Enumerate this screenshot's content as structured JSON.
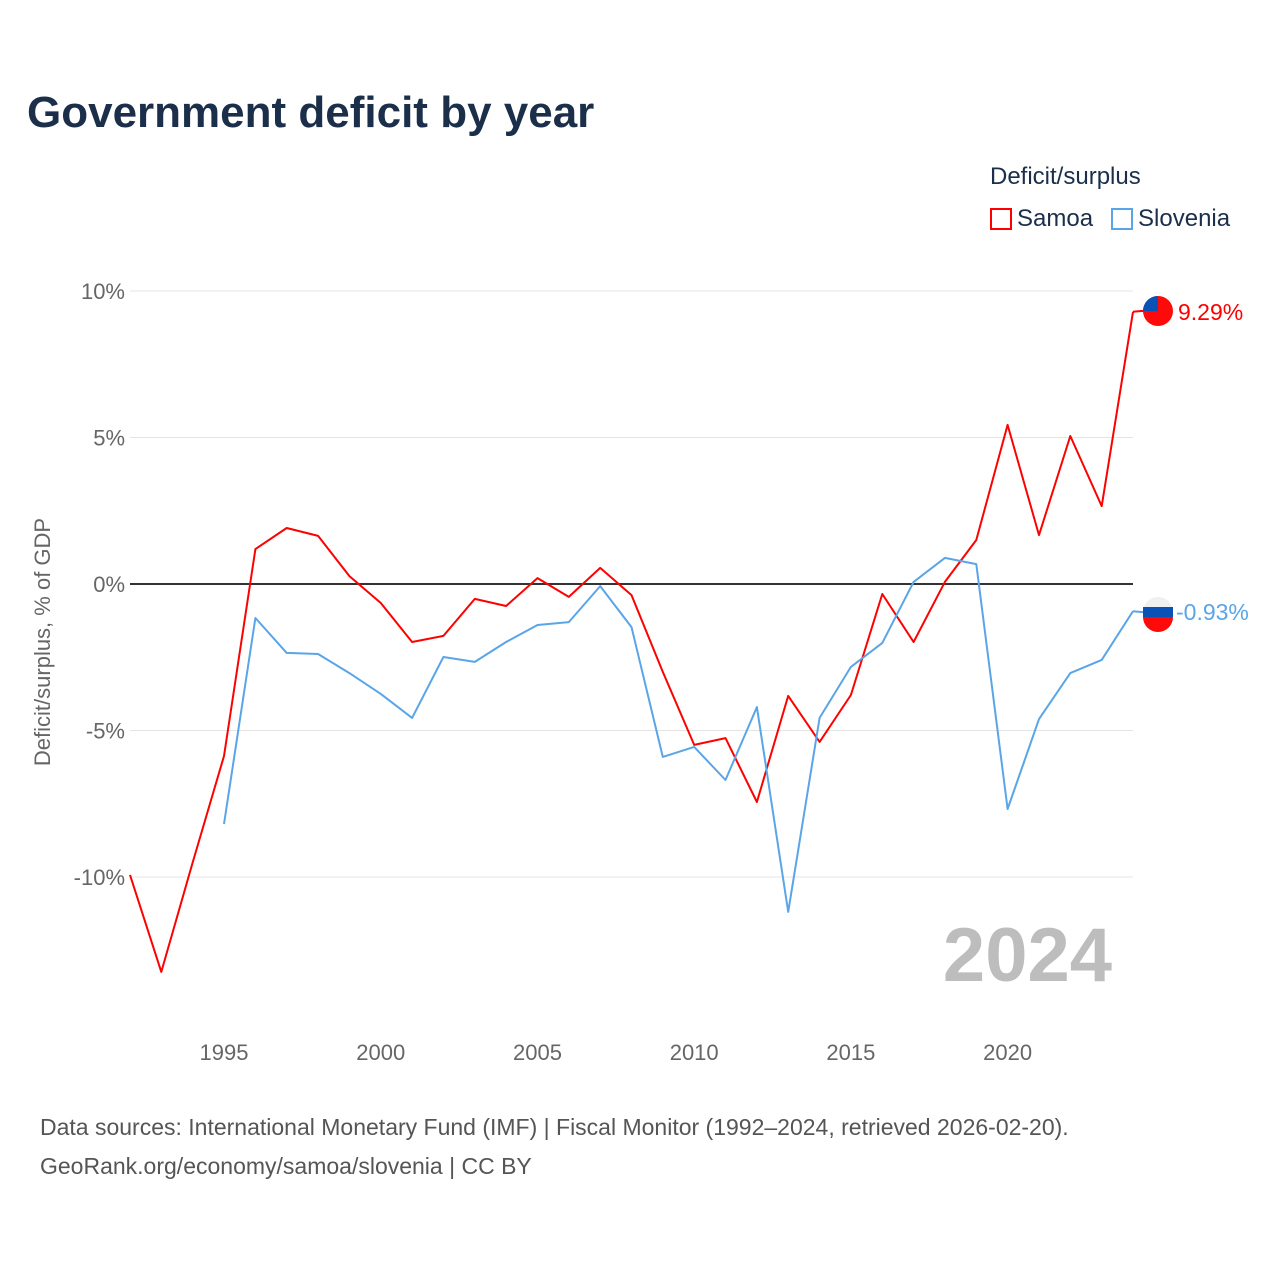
{
  "title": "Government deficit by year",
  "legend": {
    "title": "Deficit/surplus",
    "items": [
      {
        "name": "Samoa",
        "color": "#ff0000"
      },
      {
        "name": "Slovenia",
        "color": "#5aa5e8"
      }
    ]
  },
  "watermark_year": "2024",
  "footer": {
    "line1": "Data sources: International Monetary Fund (IMF) | Fiscal Monitor (1992–2024, retrieved 2026-02-20).",
    "line2": "GeoRank.org/economy/samoa/slovenia | CC BY"
  },
  "chart_data": {
    "type": "line",
    "title": "Government deficit by year",
    "xlabel": "",
    "ylabel": "Deficit/surplus, % of GDP",
    "xlim": [
      1992,
      2024
    ],
    "ylim": [
      -14.5,
      10
    ],
    "x_ticks": [
      1995,
      2000,
      2005,
      2010,
      2015,
      2020
    ],
    "y_ticks": [
      {
        "value": 10,
        "label": "10%"
      },
      {
        "value": 5,
        "label": "5%"
      },
      {
        "value": 0,
        "label": "0%"
      },
      {
        "value": -5,
        "label": "-5%"
      },
      {
        "value": -10,
        "label": "-10%"
      }
    ],
    "grid": true,
    "legend_position": "top-right",
    "series": [
      {
        "name": "Samoa",
        "color": "#ff0000",
        "end_label": "9.29%",
        "x": [
          1992,
          1993,
          1994,
          1995,
          1996,
          1997,
          1998,
          1999,
          2000,
          2001,
          2002,
          2003,
          2004,
          2005,
          2006,
          2007,
          2008,
          2009,
          2010,
          2011,
          2012,
          2013,
          2014,
          2015,
          2016,
          2017,
          2018,
          2019,
          2020,
          2021,
          2022,
          2023,
          2024
        ],
        "values": [
          -9.93,
          -13.24,
          -9.5,
          -5.87,
          1.19,
          1.91,
          1.64,
          0.27,
          -0.65,
          -1.98,
          -1.77,
          -0.51,
          -0.75,
          0.2,
          -0.44,
          0.55,
          -0.38,
          -3.0,
          -5.49,
          -5.26,
          -7.44,
          -3.82,
          -5.39,
          -3.79,
          -0.34,
          -1.98,
          0.07,
          1.5,
          5.43,
          1.67,
          5.05,
          2.66,
          9.29
        ]
      },
      {
        "name": "Slovenia",
        "color": "#5aa5e8",
        "end_label": "-0.93%",
        "x": [
          1995,
          1996,
          1997,
          1998,
          1999,
          2000,
          2001,
          2002,
          2003,
          2004,
          2005,
          2006,
          2007,
          2008,
          2009,
          2010,
          2011,
          2012,
          2013,
          2014,
          2015,
          2016,
          2017,
          2018,
          2019,
          2020,
          2021,
          2022,
          2023,
          2024
        ],
        "values": [
          -8.19,
          -1.16,
          -2.35,
          -2.39,
          -3.04,
          -3.75,
          -4.57,
          -2.49,
          -2.66,
          -1.98,
          -1.4,
          -1.3,
          -0.07,
          -1.47,
          -5.9,
          -5.56,
          -6.69,
          -4.2,
          -11.19,
          -4.57,
          -2.83,
          -2.01,
          0.07,
          0.89,
          0.68,
          -7.68,
          -4.61,
          -3.04,
          -2.59,
          -0.93
        ]
      }
    ]
  }
}
